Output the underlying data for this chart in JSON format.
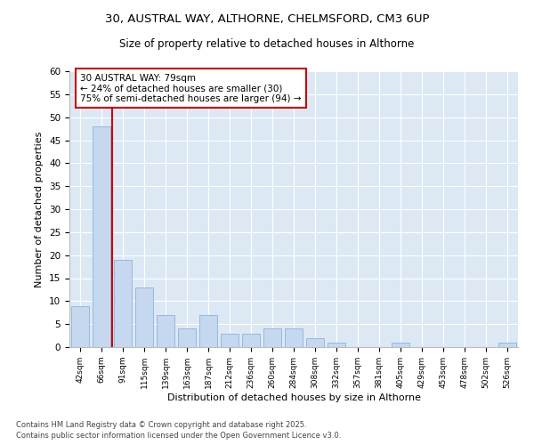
{
  "title_line1": "30, AUSTRAL WAY, ALTHORNE, CHELMSFORD, CM3 6UP",
  "title_line2": "Size of property relative to detached houses in Althorne",
  "xlabel": "Distribution of detached houses by size in Althorne",
  "ylabel": "Number of detached properties",
  "categories": [
    "42sqm",
    "66sqm",
    "91sqm",
    "115sqm",
    "139sqm",
    "163sqm",
    "187sqm",
    "212sqm",
    "236sqm",
    "260sqm",
    "284sqm",
    "308sqm",
    "332sqm",
    "357sqm",
    "381sqm",
    "405sqm",
    "429sqm",
    "453sqm",
    "478sqm",
    "502sqm",
    "526sqm"
  ],
  "values": [
    9,
    48,
    19,
    13,
    7,
    4,
    7,
    3,
    3,
    4,
    4,
    2,
    1,
    0,
    0,
    1,
    0,
    0,
    0,
    0,
    1
  ],
  "bar_color": "#c5d8f0",
  "bar_edge_color": "#8ab4d8",
  "background_color": "#dde8f5",
  "grid_color": "#ffffff",
  "vline_x": 1.5,
  "vline_color": "#cc0000",
  "annotation_text": "30 AUSTRAL WAY: 79sqm\n← 24% of detached houses are smaller (30)\n75% of semi-detached houses are larger (94) →",
  "annotation_box_color": "#cc0000",
  "ylim": [
    0,
    60
  ],
  "yticks": [
    0,
    5,
    10,
    15,
    20,
    25,
    30,
    35,
    40,
    45,
    50,
    55,
    60
  ],
  "footer_line1": "Contains HM Land Registry data © Crown copyright and database right 2025.",
  "footer_line2": "Contains public sector information licensed under the Open Government Licence v3.0."
}
